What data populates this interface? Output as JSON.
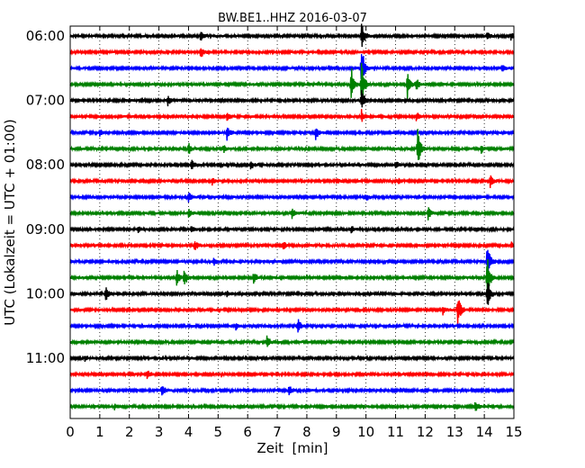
{
  "chart_data": {
    "type": "line",
    "title": "BW.BE1..HHZ 2016-03-07",
    "xlabel": "Zeit  [min]",
    "ylabel": "UTC (Lokalzeit = UTC + 01:00)",
    "xlim": [
      0,
      15
    ],
    "x_ticks": [
      "0",
      "1",
      "2",
      "3",
      "4",
      "5",
      "6",
      "7",
      "8",
      "9",
      "10",
      "11",
      "12",
      "13",
      "14",
      "15"
    ],
    "row_interval_minutes": 15,
    "y_tick_labels": [
      {
        "row": 0,
        "label": "06:00"
      },
      {
        "row": 4,
        "label": "07:00"
      },
      {
        "row": 8,
        "label": "08:00"
      },
      {
        "row": 12,
        "label": "09:00"
      },
      {
        "row": 16,
        "label": "10:00"
      },
      {
        "row": 20,
        "label": "11:00"
      }
    ],
    "row_colors": [
      "#000000",
      "#ff0000",
      "#0000ff",
      "#008000"
    ],
    "grid": "vertical dotted",
    "rows": [
      {
        "start": "06:00",
        "events": [
          {
            "t": 4.4,
            "amp": 0.25
          },
          {
            "t": 9.85,
            "amp": 0.7
          },
          {
            "t": 14.1,
            "amp": 0.2
          },
          {
            "t": 14.9,
            "amp": 0.15
          }
        ]
      },
      {
        "start": "06:15",
        "events": [
          {
            "t": 4.4,
            "amp": 0.3
          }
        ]
      },
      {
        "start": "06:30",
        "events": [
          {
            "t": 9.85,
            "amp": 1.2
          },
          {
            "t": 14.6,
            "amp": 0.2
          }
        ]
      },
      {
        "start": "06:45",
        "events": [
          {
            "t": 9.5,
            "amp": 0.9
          },
          {
            "t": 9.85,
            "amp": 1.1
          },
          {
            "t": 11.4,
            "amp": 0.7
          },
          {
            "t": 11.7,
            "amp": 0.3
          }
        ]
      },
      {
        "start": "07:00",
        "events": [
          {
            "t": 3.3,
            "amp": 0.25
          },
          {
            "t": 9.85,
            "amp": 0.6
          }
        ]
      },
      {
        "start": "07:15",
        "events": [
          {
            "t": 5.3,
            "amp": 0.2
          },
          {
            "t": 9.85,
            "amp": 0.3
          },
          {
            "t": 11.7,
            "amp": 0.25
          }
        ]
      },
      {
        "start": "07:30",
        "events": [
          {
            "t": 1.0,
            "amp": 0.15
          },
          {
            "t": 5.3,
            "amp": 0.4
          },
          {
            "t": 8.3,
            "amp": 0.3
          }
        ]
      },
      {
        "start": "07:45",
        "events": [
          {
            "t": 4.0,
            "amp": 0.25
          },
          {
            "t": 5.2,
            "amp": 0.2
          },
          {
            "t": 11.75,
            "amp": 0.9
          },
          {
            "t": 13.9,
            "amp": 0.2
          }
        ]
      },
      {
        "start": "08:00",
        "events": [
          {
            "t": 4.1,
            "amp": 0.25
          },
          {
            "t": 6.1,
            "amp": 0.2
          },
          {
            "t": 11.0,
            "amp": 0.2
          }
        ]
      },
      {
        "start": "08:15",
        "events": [
          {
            "t": 4.8,
            "amp": 0.15
          },
          {
            "t": 9.0,
            "amp": 0.15
          },
          {
            "t": 11.1,
            "amp": 0.15
          },
          {
            "t": 14.2,
            "amp": 0.3
          }
        ]
      },
      {
        "start": "08:30",
        "events": [
          {
            "t": 4.0,
            "amp": 0.25
          },
          {
            "t": 10.0,
            "amp": 0.15
          }
        ]
      },
      {
        "start": "08:45",
        "events": [
          {
            "t": 4.0,
            "amp": 0.2
          },
          {
            "t": 7.5,
            "amp": 0.25
          },
          {
            "t": 12.1,
            "amp": 0.3
          }
        ]
      },
      {
        "start": "09:00",
        "events": [
          {
            "t": 2.3,
            "amp": 0.15
          },
          {
            "t": 4.1,
            "amp": 0.2
          },
          {
            "t": 9.5,
            "amp": 0.15
          }
        ]
      },
      {
        "start": "09:15",
        "events": [
          {
            "t": 4.2,
            "amp": 0.3
          },
          {
            "t": 7.2,
            "amp": 0.2
          },
          {
            "t": 14.9,
            "amp": 0.15
          }
        ]
      },
      {
        "start": "09:30",
        "events": [
          {
            "t": 4.85,
            "amp": 0.2
          },
          {
            "t": 14.1,
            "amp": 1.0
          }
        ]
      },
      {
        "start": "09:45",
        "events": [
          {
            "t": 3.6,
            "amp": 0.45
          },
          {
            "t": 3.85,
            "amp": 0.5
          },
          {
            "t": 6.2,
            "amp": 0.3
          },
          {
            "t": 14.1,
            "amp": 1.1
          }
        ]
      },
      {
        "start": "10:00",
        "events": [
          {
            "t": 1.2,
            "amp": 0.35
          },
          {
            "t": 5.3,
            "amp": 0.15
          },
          {
            "t": 14.1,
            "amp": 0.8
          }
        ]
      },
      {
        "start": "10:15",
        "events": [
          {
            "t": 12.6,
            "amp": 0.2
          },
          {
            "t": 13.1,
            "amp": 0.9
          }
        ]
      },
      {
        "start": "10:30",
        "events": [
          {
            "t": 5.6,
            "amp": 0.15
          },
          {
            "t": 7.7,
            "amp": 0.35
          }
        ]
      },
      {
        "start": "10:45",
        "events": [
          {
            "t": 6.65,
            "amp": 0.35
          }
        ]
      },
      {
        "start": "11:00",
        "events": [
          {
            "t": 0.5,
            "amp": 0.1
          }
        ]
      },
      {
        "start": "11:15",
        "events": [
          {
            "t": 2.6,
            "amp": 0.25
          }
        ]
      },
      {
        "start": "11:30",
        "events": [
          {
            "t": 3.1,
            "amp": 0.3
          },
          {
            "t": 7.4,
            "amp": 0.25
          }
        ]
      },
      {
        "start": "11:45",
        "events": [
          {
            "t": 1.5,
            "amp": 0.15
          },
          {
            "t": 13.7,
            "amp": 0.3
          }
        ]
      }
    ]
  }
}
